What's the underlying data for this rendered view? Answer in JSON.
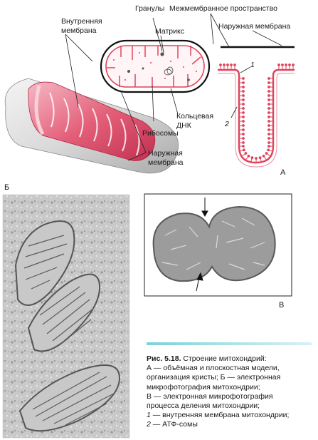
{
  "labels": {
    "inner_membrane": [
      "Внутренняя",
      "мембрана"
    ],
    "granules": "Гранулы",
    "intermembrane_space": "Межмембранное пространство",
    "matrix": "Матрикс",
    "outer_membrane_top": "Наружная мембрана",
    "circular_dna": [
      "Кольцевая",
      "ДНК"
    ],
    "ribosomes": "Рибосомы",
    "outer_membrane_bottom": [
      "Наружная",
      "мембрана"
    ],
    "marker_1": "1",
    "marker_2": "2"
  },
  "panels": {
    "a": "А",
    "b": "Б",
    "v": "В",
    "v_corner": "В"
  },
  "caption": {
    "figure": "Рис. 5.18.",
    "title": " Строение митохондрий:",
    "lines": [
      "А — объёмная и плоскостная модели,",
      "организация кристы; Б — электронная",
      "микрофотография митохондрии;",
      "В — электронная микрофотография",
      "процесса деления митохондрии;"
    ],
    "item1_num": "1",
    "item1_text": " — внутренняя мембрана митохондрии;",
    "item2_num": "2",
    "item2_text": " — АТФ-сомы"
  },
  "colors": {
    "membrane_pink": "#e0435c",
    "outer_gray": "#cfcfcf",
    "caption_accent": "#7ad3d9"
  }
}
